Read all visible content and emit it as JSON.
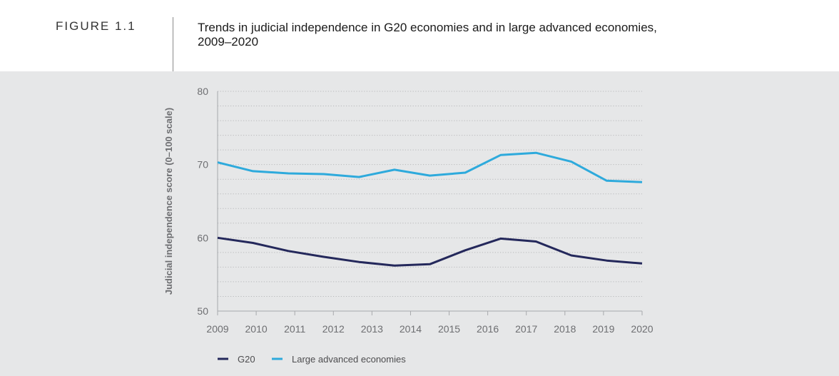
{
  "figure": {
    "label": "FIGURE 1.1",
    "title_line1": "Trends in judicial independence in G20 economies and in large advanced economies,",
    "title_line2": "2009–2020"
  },
  "chart_data": {
    "type": "line",
    "title": "Trends in judicial independence in G20 economies and in large advanced economies, 2009–2020",
    "xlabel": "",
    "ylabel": "Judicial independence score (0–100 scale)",
    "ylim": [
      50,
      80
    ],
    "yticks": [
      "50",
      "60",
      "70",
      "80"
    ],
    "xlim": [
      2009,
      2020
    ],
    "xticks": [
      "2009",
      "2010",
      "2011",
      "2012",
      "2013",
      "2014",
      "2015",
      "2016",
      "2017",
      "2018",
      "2019",
      "2020"
    ],
    "grid": true,
    "grid_step": 2,
    "legend_position": "bottom-left",
    "x": [
      0,
      1,
      2,
      3,
      4,
      5,
      6,
      7,
      8,
      9,
      10,
      11,
      12
    ],
    "x_note": "13 evenly spaced observations spanning 2009 to 2020",
    "series": [
      {
        "name": "G20",
        "color": "#24285b",
        "values": [
          60.0,
          59.3,
          58.2,
          57.4,
          56.7,
          56.2,
          56.4,
          58.3,
          59.9,
          59.5,
          57.6,
          56.9,
          56.5
        ]
      },
      {
        "name": "Large advanced economies",
        "color": "#2eaadc",
        "values": [
          70.3,
          69.1,
          68.8,
          68.7,
          68.3,
          69.3,
          68.5,
          68.9,
          71.3,
          71.6,
          70.4,
          67.8,
          67.6
        ]
      }
    ],
    "axis_color": "#a7a9ac",
    "grid_color": "#b8b9bb"
  }
}
